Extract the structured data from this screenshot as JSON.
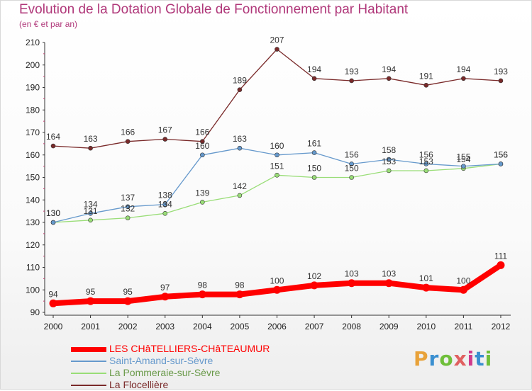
{
  "header": {
    "title": "Evolution de la Dotation Globale de Fonctionnement par Habitant",
    "subtitle": "(en € et par an)"
  },
  "logo": {
    "text": "Proxiti",
    "colors": [
      "#e8a23a",
      "#3a8fd0",
      "#6fbf3a",
      "#e06060",
      "#d03a8c",
      "#3a8fd0",
      "#6fbf3a"
    ]
  },
  "chart_data": {
    "type": "line",
    "x": [
      "2000",
      "2001",
      "2002",
      "2003",
      "2004",
      "2005",
      "2006",
      "2007",
      "2008",
      "2009",
      "2010",
      "2011",
      "2012"
    ],
    "ylim": [
      90,
      210
    ],
    "yticks": [
      90,
      100,
      110,
      120,
      130,
      140,
      150,
      160,
      170,
      180,
      190,
      200,
      210
    ],
    "grid": false,
    "legend_placement": "bottom-left",
    "series": [
      {
        "name": "LES CHâTELLIERS-CHâTEAUMUR",
        "color": "#ff0000",
        "values": [
          94,
          95,
          95,
          97,
          98,
          98,
          100,
          102,
          103,
          103,
          101,
          100,
          111
        ]
      },
      {
        "name": "Saint-Amand-sur-Sèvre",
        "color": "#6699cc",
        "values": [
          130,
          134,
          137,
          138,
          160,
          163,
          160,
          161,
          156,
          158,
          156,
          155,
          156
        ]
      },
      {
        "name": "La Pommeraie-sur-Sèvre",
        "color": "#99dd77",
        "values": [
          130,
          131,
          132,
          134,
          139,
          142,
          151,
          150,
          150,
          153,
          153,
          154,
          156
        ]
      },
      {
        "name": "La Flocellière",
        "color": "#7a2a2a",
        "values": [
          164,
          163,
          166,
          167,
          166,
          189,
          207,
          194,
          193,
          194,
          191,
          194,
          193
        ]
      }
    ]
  }
}
